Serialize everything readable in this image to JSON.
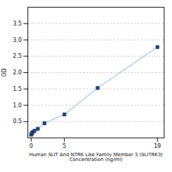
{
  "chart_data": {
    "type": "line",
    "xlabel": "Human SLIT And NTRK Like Family Member 3 (SLITRK3)\nConcentration (ng/ml)",
    "ylabel": "OD",
    "x": [
      0,
      0.0625,
      0.125,
      0.25,
      0.5,
      1,
      2,
      5,
      10,
      19
    ],
    "values": [
      0.1,
      0.12,
      0.15,
      0.18,
      0.22,
      0.28,
      0.45,
      0.72,
      1.53,
      2.78
    ],
    "color": "#aecde8",
    "colors": [
      "#1a3a6b",
      "#1a3a6b",
      "#1a3a6b",
      "#1a3a6b",
      "#1a3a6b",
      "#1a3a6b",
      "#1a3a6b",
      "#1a3a6b",
      "#1a3a6b",
      "#1a3a6b"
    ],
    "marker": "square",
    "xlim": [
      -0.5,
      20
    ],
    "xticks": [
      0,
      5,
      19
    ],
    "ylim": [
      0,
      4.0
    ],
    "yticks": [
      0.5,
      {
        "value": 1.0,
        "label": "1.0"
      },
      1.5,
      {
        "value": 2.0,
        "label": "2.0"
      },
      2.5,
      {
        "value": 3.0,
        "label": "3.0"
      },
      3.5
    ],
    "grid": true
  }
}
